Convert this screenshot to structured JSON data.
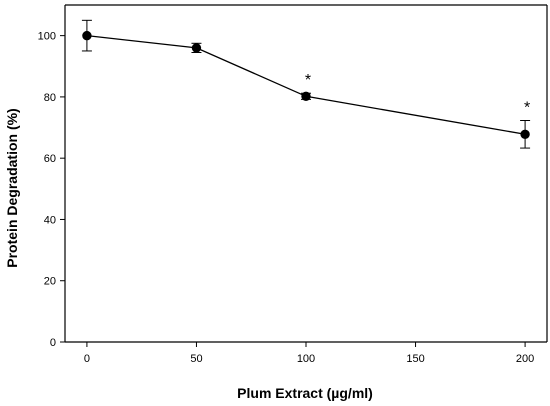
{
  "chart_data": {
    "type": "line",
    "xlabel": "Plum Extract (µg/ml)",
    "ylabel": "Protein Degradation (%)",
    "xlim": [
      -10,
      210
    ],
    "ylim": [
      0,
      110
    ],
    "x_ticks": [
      0,
      50,
      100,
      150,
      200
    ],
    "y_ticks": [
      0,
      20,
      40,
      60,
      80,
      100
    ],
    "grid": false,
    "series": [
      {
        "x": [
          0,
          50,
          100,
          200
        ],
        "y": [
          100,
          96,
          80.2,
          67.8
        ],
        "error": [
          5,
          1.5,
          1,
          4.5
        ],
        "annotations": [
          "",
          "",
          "*",
          "*"
        ]
      }
    ]
  }
}
